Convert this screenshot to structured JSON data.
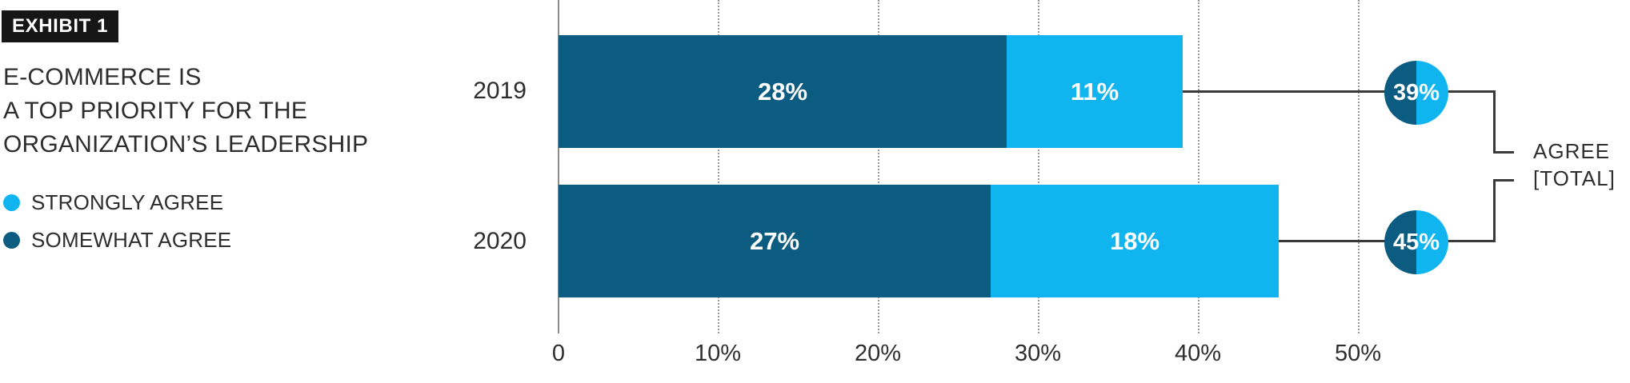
{
  "exhibit": {
    "label": "EXHIBIT 1"
  },
  "title": {
    "line1": "E-COMMERCE IS",
    "line2": "A TOP PRIORITY FOR THE",
    "line3": "ORGANIZATION’S LEADERSHIP"
  },
  "legend": {
    "items": [
      {
        "label": "STRONGLY AGREE",
        "key": "strongly"
      },
      {
        "label": "SOMEWHAT AGREE",
        "key": "somewhat"
      }
    ]
  },
  "annotations": {
    "agree_line1": "AGREE",
    "agree_line2": "[TOTAL]"
  },
  "chart_data": {
    "type": "bar",
    "orientation": "horizontal",
    "stacked": true,
    "title": "E-COMMERCE IS A TOP PRIORITY FOR THE ORGANIZATION’S LEADERSHIP",
    "categories": [
      "2019",
      "2020"
    ],
    "series": [
      {
        "name": "SOMEWHAT AGREE",
        "key": "somewhat",
        "values": [
          28,
          27
        ]
      },
      {
        "name": "STRONGLY AGREE",
        "key": "strongly",
        "values": [
          11,
          18
        ]
      }
    ],
    "totals": [
      39,
      45
    ],
    "colors": {
      "somewhat": "#0B5C80",
      "strongly": "#10B5F0"
    },
    "rows": [
      {
        "year": "2019",
        "somewhat": 28,
        "strongly": 11,
        "total": 39,
        "somewhat_label": "28%",
        "strongly_label": "11%",
        "total_label": "39%"
      },
      {
        "year": "2020",
        "somewhat": 27,
        "strongly": 18,
        "total": 45,
        "somewhat_label": "27%",
        "strongly_label": "18%",
        "total_label": "45%"
      }
    ],
    "x_axis": {
      "min": 0,
      "max": 50,
      "tick_values": [
        0,
        10,
        20,
        30,
        40,
        50
      ],
      "tick_labels": [
        "0",
        "10%",
        "20%",
        "30%",
        "40%",
        "50%"
      ],
      "grid": "dotted-vertical"
    },
    "legend_position": "left",
    "unit": "percent"
  }
}
